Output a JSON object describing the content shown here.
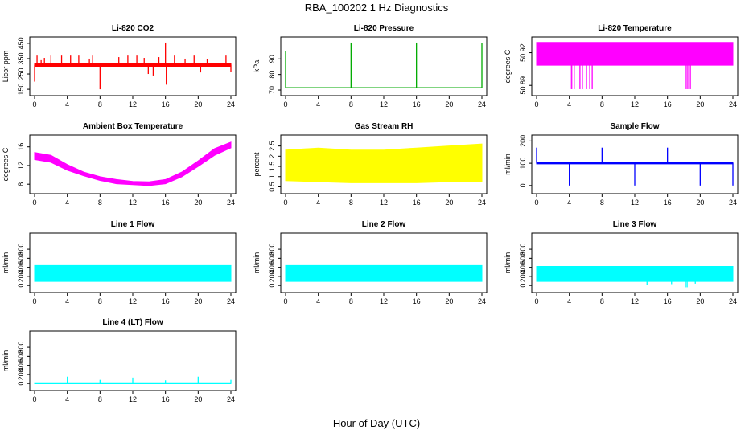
{
  "figure": {
    "title": "RBA_100202  1 Hz Diagnostics",
    "xlabel": "Hour of Day (UTC)"
  },
  "chart_data": [
    {
      "type": "line",
      "title": "Li-820 CO2",
      "ylabel": "Licor ppm",
      "color": "#ff0000",
      "xlim": [
        0,
        24
      ],
      "xticks": [
        0,
        4,
        8,
        12,
        16,
        20,
        24
      ],
      "ylim": [
        140,
        460
      ],
      "yticks": [
        150,
        250,
        350,
        450
      ],
      "series": [
        {
          "style": "band",
          "x": [
            0,
            24
          ],
          "low": [
            300,
            300
          ],
          "high": [
            320,
            320
          ]
        },
        {
          "style": "spikes",
          "x": [
            0,
            0.3,
            0.8,
            1.2,
            2,
            3.3,
            4.4,
            5.4,
            6.7,
            7.1,
            8,
            8.1,
            10.3,
            11.4,
            12.5,
            13.4,
            13.9,
            14.5,
            15.2,
            16,
            16.1,
            17.1,
            18.4,
            19.5,
            20.3,
            21.1,
            23.4,
            24
          ],
          "y": [
            200,
            370,
            340,
            355,
            370,
            370,
            370,
            370,
            350,
            370,
            150,
            260,
            360,
            370,
            370,
            355,
            250,
            240,
            360,
            455,
            180,
            370,
            350,
            370,
            260,
            345,
            370,
            265
          ]
        }
      ]
    },
    {
      "type": "line",
      "title": "Li-820 Pressure",
      "ylabel": "kPa",
      "color": "#00aa00",
      "xlim": [
        0,
        24
      ],
      "xticks": [
        0,
        4,
        8,
        12,
        16,
        20,
        24
      ],
      "ylim": [
        69.5,
        101
      ],
      "yticks": [
        70,
        80,
        90
      ],
      "series": [
        {
          "style": "line",
          "x": [
            0,
            24
          ],
          "y": [
            71.5,
            71.5
          ]
        },
        {
          "style": "spikes",
          "x": [
            0,
            8,
            16,
            24
          ],
          "y": [
            95,
            100.5,
            100.5,
            100
          ]
        }
      ]
    },
    {
      "type": "line",
      "title": "Li-820 Temperature",
      "ylabel": "degrees C",
      "color": "#ff00ff",
      "xlim": [
        0,
        24
      ],
      "xticks": [
        0,
        4,
        8,
        12,
        16,
        20,
        24
      ],
      "ylim": [
        50.885,
        50.93
      ],
      "yticks": [
        50.89,
        50.92
      ],
      "series": [
        {
          "style": "band",
          "x": [
            0,
            24
          ],
          "low": [
            50.9085,
            50.9085
          ],
          "high": [
            50.9295,
            50.9295
          ]
        },
        {
          "style": "dropouts",
          "x": [
            4.1,
            4.3,
            4.6,
            5.3,
            5.6,
            6.1,
            6.5,
            6.8,
            18.2,
            18.4,
            18.6,
            18.8
          ],
          "y": [
            50.8865,
            50.8865,
            50.8865,
            50.8865,
            50.8865,
            50.8865,
            50.8865,
            50.8865,
            50.8865,
            50.8865,
            50.8865,
            50.8865
          ]
        }
      ]
    },
    {
      "type": "area",
      "title": "Ambient Box Temperature",
      "ylabel": "degrees C",
      "color": "#ff00ff",
      "xlim": [
        0,
        24
      ],
      "xticks": [
        0,
        4,
        8,
        12,
        16,
        20,
        24
      ],
      "ylim": [
        7,
        17.5
      ],
      "yticks": [
        8,
        12,
        16
      ],
      "series": [
        {
          "style": "band",
          "x": [
            0,
            2,
            4,
            6,
            8,
            10,
            12,
            14,
            16,
            18,
            20,
            22,
            24
          ],
          "low": [
            13.3,
            12.7,
            11.0,
            9.8,
            8.8,
            8.1,
            7.9,
            7.7,
            8.1,
            9.6,
            11.8,
            14.2,
            15.8
          ],
          "high": [
            14.8,
            14.2,
            12.2,
            10.6,
            9.6,
            9.0,
            8.6,
            8.5,
            9.0,
            10.6,
            13.0,
            15.6,
            17.0
          ]
        }
      ]
    },
    {
      "type": "area",
      "title": "Gas Stream RH",
      "ylabel": "percent",
      "color": "#ffff00",
      "xlim": [
        0,
        24
      ],
      "xticks": [
        0,
        4,
        8,
        12,
        16,
        20,
        24
      ],
      "ylim": [
        0.4,
        2.8
      ],
      "yticks": [
        0.5,
        1.0,
        1.5,
        2.0,
        2.5
      ],
      "series": [
        {
          "style": "band",
          "x": [
            0,
            4,
            8,
            12,
            16,
            20,
            24
          ],
          "low": [
            0.8,
            0.75,
            0.7,
            0.7,
            0.7,
            0.75,
            0.75
          ],
          "high": [
            2.3,
            2.4,
            2.3,
            2.3,
            2.4,
            2.5,
            2.6
          ]
        }
      ]
    },
    {
      "type": "line",
      "title": "Sample Flow",
      "ylabel": "ml/min",
      "color": "#0000ff",
      "xlim": [
        0,
        24
      ],
      "xticks": [
        0,
        4,
        8,
        12,
        16,
        20,
        24
      ],
      "ylim": [
        -15,
        205
      ],
      "yticks": [
        0,
        100,
        200
      ],
      "series": [
        {
          "style": "band",
          "x": [
            0,
            24
          ],
          "low": [
            97,
            97
          ],
          "high": [
            104,
            104
          ]
        },
        {
          "style": "spikes",
          "x": [
            0,
            4,
            8,
            12,
            16,
            20,
            24
          ],
          "y": [
            170,
            0,
            170,
            0,
            170,
            0,
            0
          ]
        }
      ]
    },
    {
      "type": "area",
      "title": "Line 1 Flow",
      "ylabel": "ml/min",
      "color": "#00ffff",
      "xlim": [
        0,
        24
      ],
      "xticks": [
        0,
        4,
        8,
        12,
        16,
        20,
        24
      ],
      "ylim": [
        -50,
        1050
      ],
      "yticks": [
        0,
        200,
        400,
        600,
        800
      ],
      "series": [
        {
          "style": "band",
          "x": [
            0,
            24
          ],
          "low": [
            90,
            90
          ],
          "high": [
            440,
            440
          ]
        }
      ]
    },
    {
      "type": "area",
      "title": "Line 2 Flow",
      "ylabel": "ml/min",
      "color": "#00ffff",
      "xlim": [
        0,
        24
      ],
      "xticks": [
        0,
        4,
        8,
        12,
        16,
        20,
        24
      ],
      "ylim": [
        -50,
        1050
      ],
      "yticks": [
        0,
        200,
        400,
        600,
        800
      ],
      "series": [
        {
          "style": "band",
          "x": [
            0,
            24
          ],
          "low": [
            90,
            90
          ],
          "high": [
            440,
            440
          ]
        }
      ]
    },
    {
      "type": "area",
      "title": "Line 3 Flow",
      "ylabel": "ml/min",
      "color": "#00ffff",
      "xlim": [
        0,
        24
      ],
      "xticks": [
        0,
        4,
        8,
        12,
        16,
        20,
        24
      ],
      "ylim": [
        -50,
        1050
      ],
      "yticks": [
        0,
        200,
        400,
        600,
        800
      ],
      "series": [
        {
          "style": "band",
          "x": [
            0,
            24
          ],
          "low": [
            90,
            90
          ],
          "high": [
            420,
            420
          ]
        },
        {
          "style": "spikes",
          "x": [
            13.5,
            16.5,
            18.2,
            18.4,
            19.4
          ],
          "y": [
            20,
            30,
            -40,
            -40,
            40
          ]
        }
      ]
    },
    {
      "type": "line",
      "title": "Line 4 (LT) Flow",
      "ylabel": "ml/min",
      "color": "#00ffff",
      "xlim": [
        0,
        24
      ],
      "xticks": [
        0,
        4,
        8,
        12,
        16,
        20,
        24
      ],
      "ylim": [
        -50,
        1050
      ],
      "yticks": [
        0,
        200,
        400,
        600,
        800
      ],
      "series": [
        {
          "style": "band",
          "x": [
            0,
            24
          ],
          "low": [
            -5,
            -5
          ],
          "high": [
            15,
            15
          ]
        },
        {
          "style": "spikes",
          "x": [
            4,
            8,
            12,
            16,
            20,
            24
          ],
          "y": [
            150,
            80,
            130,
            70,
            150,
            80
          ]
        }
      ]
    }
  ]
}
